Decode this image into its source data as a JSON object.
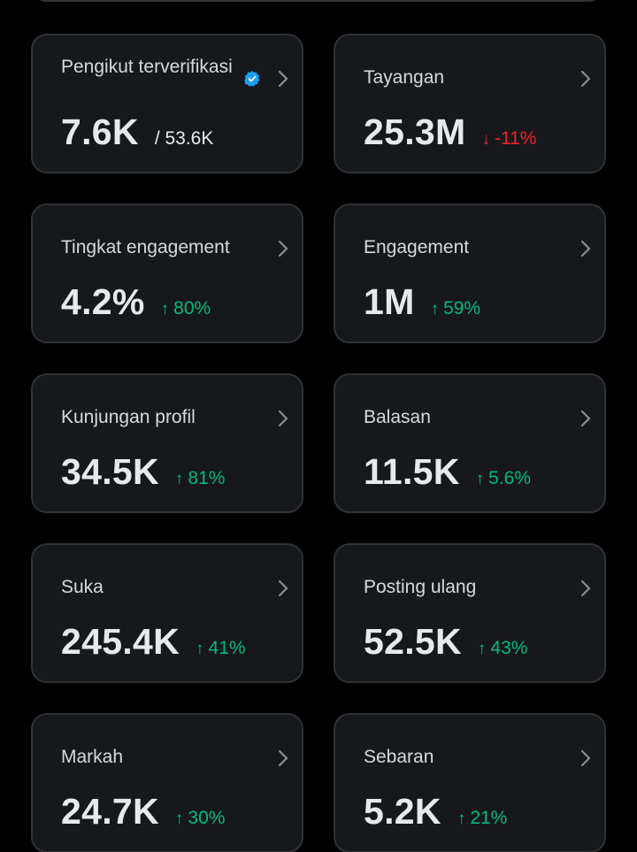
{
  "colors": {
    "background": "#000000",
    "card": "#16181c",
    "border": "#2f3336",
    "text": "#e7e9ea",
    "positive": "#00ba7c",
    "negative": "#f4212e",
    "verified": "#1d9bf0"
  },
  "cards": [
    {
      "label": "Pengikut terverifikasi",
      "value": "7.6K",
      "sub": "/ 53.6K",
      "icon": "verified-badge-icon"
    },
    {
      "label": "Tayangan",
      "value": "25.3M",
      "change_arrow": "↓",
      "change": "-11%",
      "direction": "down"
    },
    {
      "label": "Tingkat engagement",
      "value": "4.2%",
      "change_arrow": "↑",
      "change": "80%",
      "direction": "up"
    },
    {
      "label": "Engagement",
      "value": "1M",
      "change_arrow": "↑",
      "change": "59%",
      "direction": "up"
    },
    {
      "label": "Kunjungan profil",
      "value": "34.5K",
      "change_arrow": "↑",
      "change": "81%",
      "direction": "up"
    },
    {
      "label": "Balasan",
      "value": "11.5K",
      "change_arrow": "↑",
      "change": "5.6%",
      "direction": "up"
    },
    {
      "label": "Suka",
      "value": "245.4K",
      "change_arrow": "↑",
      "change": "41%",
      "direction": "up"
    },
    {
      "label": "Posting ulang",
      "value": "52.5K",
      "change_arrow": "↑",
      "change": "43%",
      "direction": "up"
    },
    {
      "label": "Markah",
      "value": "24.7K",
      "change_arrow": "↑",
      "change": "30%",
      "direction": "up"
    },
    {
      "label": "Sebaran",
      "value": "5.2K",
      "change_arrow": "↑",
      "change": "21%",
      "direction": "up"
    }
  ]
}
